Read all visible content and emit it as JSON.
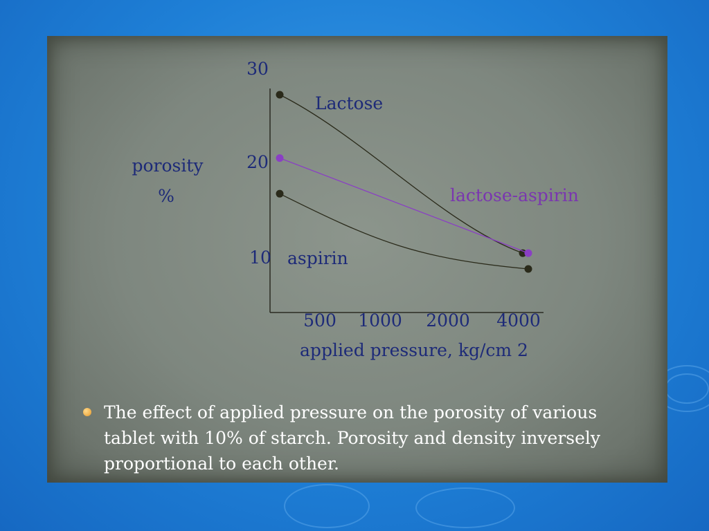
{
  "chart_data": {
    "type": "line",
    "title": "",
    "ylabel_line1": "porosity",
    "ylabel_line2": "%",
    "xlabel": "applied pressure, kg/cm 2",
    "categories": [
      "500",
      "1000",
      "2000",
      "4000"
    ],
    "yticks": [
      "30",
      "20",
      "10"
    ],
    "ylim": [
      0,
      30
    ],
    "series": [
      {
        "name": "Lactose",
        "color": "#2a2a1a",
        "start": 27.5,
        "end": 7.5
      },
      {
        "name": "lactose-aspirin",
        "color": "#8a3fc4",
        "start": 19.5,
        "end": 7.5
      },
      {
        "name": "aspirin",
        "color": "#2a2a1a",
        "start": 15.0,
        "end": 5.5
      }
    ]
  },
  "caption": "The effect of applied pressure on the porosity of various tablet with 10% of starch. Porosity and density inversely proportional to each other."
}
